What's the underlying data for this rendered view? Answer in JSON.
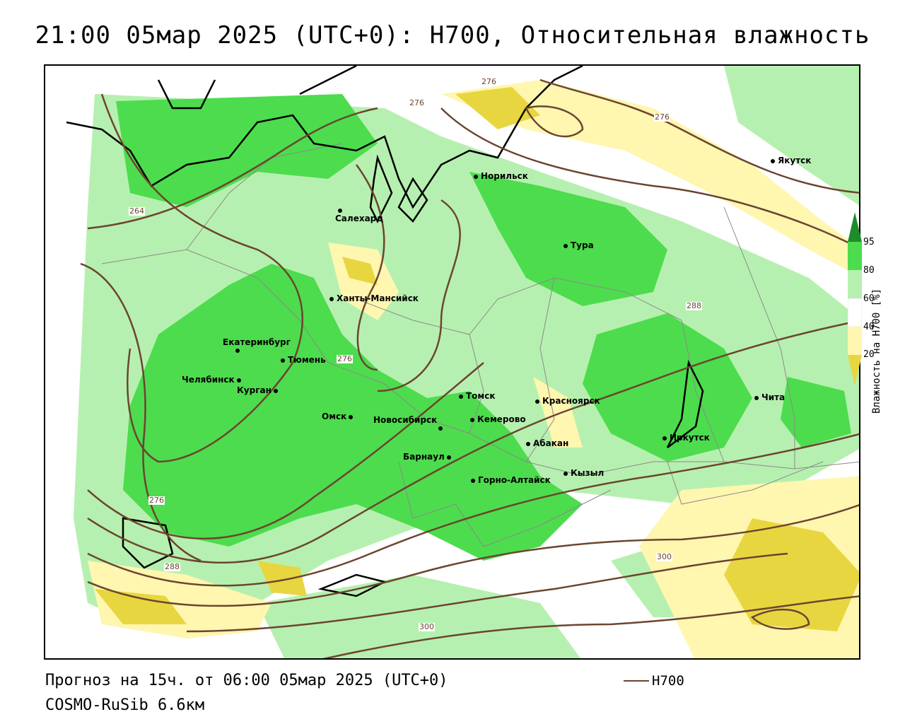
{
  "title": "21:00 05мар 2025 (UTC+0): H700, Относительная влажность",
  "footer": {
    "forecast": "Прогноз на 15ч. от 06:00 05мар 2025 (UTC+0)",
    "model": "COSMO-RuSib 6.6км",
    "legend_label": "H700"
  },
  "colorbar": {
    "title": "Влажность на H700 [%]",
    "ticks": [
      "95",
      "80",
      "60",
      "40",
      "20"
    ],
    "colors": {
      "c95": "#1f8c2a",
      "c80": "#4ddc4d",
      "c60": "#b6f0b0",
      "c50": "#ffffff",
      "c40": "#fff6b0",
      "c20": "#e8d640"
    }
  },
  "cities": [
    {
      "name": "Норильск"
    },
    {
      "name": "Салехард"
    },
    {
      "name": "Тура"
    },
    {
      "name": "Якутск"
    },
    {
      "name": "Ханты-Мансийск"
    },
    {
      "name": "Екатеринбург"
    },
    {
      "name": "Тюмень"
    },
    {
      "name": "Челябинск"
    },
    {
      "name": "Курган"
    },
    {
      "name": "Омск"
    },
    {
      "name": "Новосибирск"
    },
    {
      "name": "Томск"
    },
    {
      "name": "Кемерово"
    },
    {
      "name": "Красноярск"
    },
    {
      "name": "Барнаул"
    },
    {
      "name": "Абакан"
    },
    {
      "name": "Горно-Алтайск"
    },
    {
      "name": "Кызыл"
    },
    {
      "name": "Иркутск"
    },
    {
      "name": "Чита"
    }
  ],
  "contour_labels": [
    "276",
    "276",
    "276",
    "264",
    "276",
    "276",
    "288",
    "288",
    "300",
    "300"
  ],
  "colors": {
    "contour": "#6b4530",
    "coast": "#000000",
    "border": "#8a8a8a"
  }
}
